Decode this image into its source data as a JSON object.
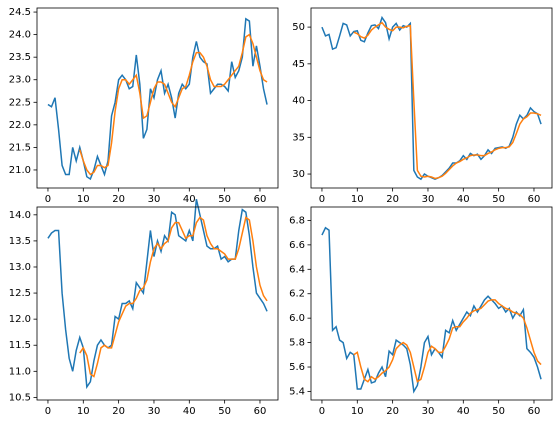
{
  "chart_data": [
    {
      "type": "line",
      "x": [
        0,
        1,
        2,
        3,
        4,
        5,
        6,
        7,
        8,
        9,
        10,
        11,
        12,
        13,
        14,
        15,
        16,
        17,
        18,
        19,
        20,
        21,
        22,
        23,
        24,
        25,
        26,
        27,
        28,
        29,
        30,
        31,
        32,
        33,
        34,
        35,
        36,
        37,
        38,
        39,
        40,
        41,
        42,
        43,
        44,
        45,
        46,
        47,
        48,
        49,
        50,
        51,
        52,
        53,
        54,
        55,
        56,
        57,
        58,
        59,
        60,
        61,
        62
      ],
      "series": [
        {
          "color": "#1f77b4",
          "values": [
            22.45,
            22.4,
            22.6,
            21.9,
            21.1,
            20.9,
            20.9,
            21.5,
            21.2,
            21.5,
            21.2,
            20.85,
            20.8,
            21.0,
            21.3,
            21.1,
            20.9,
            21.2,
            22.2,
            22.5,
            23.0,
            23.1,
            23.0,
            22.8,
            22.85,
            23.55,
            22.9,
            21.7,
            21.9,
            22.8,
            22.6,
            23.0,
            23.2,
            22.7,
            22.9,
            22.6,
            22.15,
            22.7,
            22.9,
            22.8,
            22.9,
            23.5,
            23.85,
            23.5,
            23.4,
            23.35,
            22.7,
            22.8,
            22.9,
            22.9,
            22.85,
            22.75,
            23.4,
            23.05,
            23.2,
            23.5,
            24.35,
            24.3,
            23.3,
            23.75,
            23.3,
            22.8,
            22.45
          ]
        },
        {
          "color": "#ff7f0e",
          "values": [
            null,
            null,
            null,
            null,
            null,
            null,
            null,
            null,
            null,
            21.45,
            21.2,
            21.0,
            20.9,
            20.95,
            21.1,
            21.1,
            21.05,
            21.1,
            21.6,
            22.3,
            22.8,
            23.0,
            23.0,
            22.9,
            23.0,
            23.1,
            22.7,
            22.15,
            22.2,
            22.5,
            22.8,
            22.95,
            22.95,
            22.9,
            22.7,
            22.5,
            22.4,
            22.6,
            22.8,
            22.85,
            23.1,
            23.4,
            23.6,
            23.6,
            23.5,
            23.3,
            23.0,
            22.85,
            22.85,
            22.85,
            22.9,
            23.0,
            23.1,
            23.2,
            23.3,
            23.6,
            23.95,
            24.0,
            23.8,
            23.5,
            23.2,
            23.0,
            22.95
          ]
        }
      ],
      "xlim": [
        -3.1,
        65.1
      ],
      "xticks": [
        0,
        10,
        20,
        30,
        40,
        50,
        60
      ],
      "ylim": [
        20.6,
        24.59
      ],
      "yticks": [
        {
          "value": 21,
          "label": "21.0"
        },
        21.5,
        {
          "value": 22,
          "label": "22.0"
        },
        22.5,
        {
          "value": 23,
          "label": "23.0"
        },
        23.5,
        {
          "value": 24,
          "label": "24.0"
        },
        24.5
      ]
    },
    {
      "type": "line",
      "x": [
        0,
        1,
        2,
        3,
        4,
        5,
        6,
        7,
        8,
        9,
        10,
        11,
        12,
        13,
        14,
        15,
        16,
        17,
        18,
        19,
        20,
        21,
        22,
        23,
        24,
        25,
        26,
        27,
        28,
        29,
        30,
        31,
        32,
        33,
        34,
        35,
        36,
        37,
        38,
        39,
        40,
        41,
        42,
        43,
        44,
        45,
        46,
        47,
        48,
        49,
        50,
        51,
        52,
        53,
        54,
        55,
        56,
        57,
        58,
        59,
        60,
        61,
        62
      ],
      "series": [
        {
          "color": "#1f77b4",
          "values": [
            50.0,
            48.8,
            49.0,
            47.0,
            47.2,
            48.8,
            50.5,
            50.3,
            48.8,
            49.4,
            49.5,
            48.2,
            48.0,
            49.2,
            50.2,
            50.3,
            49.8,
            51.3,
            50.6,
            48.4,
            50.0,
            50.5,
            49.6,
            50.2,
            50.0,
            50.5,
            30.5,
            29.6,
            29.3,
            30.0,
            29.7,
            29.5,
            29.3,
            29.5,
            29.8,
            30.3,
            30.8,
            31.5,
            31.5,
            31.8,
            32.5,
            32.0,
            32.8,
            32.5,
            32.7,
            32.0,
            32.5,
            33.3,
            32.8,
            33.5,
            33.6,
            33.7,
            33.5,
            33.8,
            35.0,
            36.8,
            38.0,
            37.5,
            38.0,
            39.0,
            38.5,
            38.2,
            36.8
          ]
        },
        {
          "color": "#ff7f0e",
          "values": [
            null,
            null,
            null,
            null,
            null,
            null,
            null,
            null,
            null,
            49.3,
            49.1,
            48.7,
            48.5,
            48.9,
            49.6,
            50.0,
            50.3,
            50.6,
            50.0,
            49.7,
            49.5,
            50.0,
            50.0,
            49.9,
            50.1,
            50.2,
            40.0,
            30.5,
            29.7,
            29.6,
            29.7,
            29.6,
            29.4,
            29.5,
            29.7,
            30.1,
            30.6,
            31.1,
            31.5,
            31.7,
            32.0,
            32.2,
            32.5,
            32.6,
            32.6,
            32.5,
            32.5,
            32.8,
            33.0,
            33.3,
            33.5,
            33.6,
            33.6,
            33.7,
            34.3,
            35.5,
            36.8,
            37.5,
            37.8,
            38.3,
            38.3,
            38.2,
            38.0
          ]
        }
      ],
      "xlim": [
        -3.1,
        65.1
      ],
      "xticks": [
        0,
        10,
        20,
        30,
        40,
        50,
        60
      ],
      "ylim": [
        28.1,
        52.6
      ],
      "yticks": [
        30,
        35,
        40,
        45,
        50
      ]
    },
    {
      "type": "line",
      "x": [
        0,
        1,
        2,
        3,
        4,
        5,
        6,
        7,
        8,
        9,
        10,
        11,
        12,
        13,
        14,
        15,
        16,
        17,
        18,
        19,
        20,
        21,
        22,
        23,
        24,
        25,
        26,
        27,
        28,
        29,
        30,
        31,
        32,
        33,
        34,
        35,
        36,
        37,
        38,
        39,
        40,
        41,
        42,
        43,
        44,
        45,
        46,
        47,
        48,
        49,
        50,
        51,
        52,
        53,
        54,
        55,
        56,
        57,
        58,
        59,
        60,
        61,
        62
      ],
      "series": [
        {
          "color": "#1f77b4",
          "values": [
            13.55,
            13.65,
            13.7,
            13.7,
            12.5,
            11.8,
            11.25,
            11.0,
            11.4,
            11.65,
            11.45,
            10.7,
            10.8,
            11.2,
            11.5,
            11.6,
            11.5,
            11.45,
            11.5,
            12.05,
            12.0,
            12.3,
            12.3,
            12.35,
            12.2,
            12.7,
            12.6,
            12.5,
            13.1,
            13.7,
            13.2,
            13.5,
            13.3,
            13.6,
            13.5,
            14.05,
            14.0,
            13.6,
            13.55,
            13.5,
            13.7,
            13.5,
            14.3,
            14.0,
            13.7,
            13.4,
            13.35,
            13.35,
            13.4,
            13.15,
            13.2,
            13.1,
            13.15,
            13.15,
            13.7,
            14.1,
            14.05,
            13.6,
            13.0,
            12.5,
            12.4,
            12.3,
            12.15
          ]
        },
        {
          "color": "#ff7f0e",
          "values": [
            null,
            null,
            null,
            null,
            null,
            null,
            null,
            null,
            null,
            11.35,
            11.45,
            11.3,
            10.95,
            10.9,
            11.15,
            11.45,
            11.5,
            11.45,
            11.45,
            11.7,
            11.95,
            12.1,
            12.25,
            12.3,
            12.3,
            12.4,
            12.55,
            12.6,
            12.75,
            13.1,
            13.35,
            13.45,
            13.35,
            13.45,
            13.5,
            13.75,
            13.85,
            13.85,
            13.7,
            13.55,
            13.6,
            13.6,
            13.85,
            13.95,
            13.9,
            13.6,
            13.45,
            13.35,
            13.35,
            13.3,
            13.25,
            13.15,
            13.15,
            13.15,
            13.35,
            13.65,
            13.95,
            13.9,
            13.5,
            13.0,
            12.65,
            12.45,
            12.35
          ]
        }
      ],
      "xlim": [
        -3.1,
        65.1
      ],
      "xticks": [
        0,
        10,
        20,
        30,
        40,
        50,
        60
      ],
      "ylim": [
        10.45,
        14.15
      ],
      "yticks": [
        10.5,
        {
          "value": 11,
          "label": "11.0"
        },
        11.5,
        {
          "value": 12,
          "label": "12.0"
        },
        12.5,
        {
          "value": 13,
          "label": "13.0"
        },
        13.5,
        {
          "value": 14,
          "label": "14.0"
        }
      ]
    },
    {
      "type": "line",
      "x": [
        0,
        1,
        2,
        3,
        4,
        5,
        6,
        7,
        8,
        9,
        10,
        11,
        12,
        13,
        14,
        15,
        16,
        17,
        18,
        19,
        20,
        21,
        22,
        23,
        24,
        25,
        26,
        27,
        28,
        29,
        30,
        31,
        32,
        33,
        34,
        35,
        36,
        37,
        38,
        39,
        40,
        41,
        42,
        43,
        44,
        45,
        46,
        47,
        48,
        49,
        50,
        51,
        52,
        53,
        54,
        55,
        56,
        57,
        58,
        59,
        60,
        61,
        62
      ],
      "series": [
        {
          "color": "#1f77b4",
          "values": [
            6.68,
            6.74,
            6.72,
            5.9,
            5.93,
            5.82,
            5.8,
            5.67,
            5.72,
            5.7,
            5.42,
            5.42,
            5.5,
            5.58,
            5.47,
            5.48,
            5.55,
            5.6,
            5.52,
            5.73,
            5.7,
            5.82,
            5.8,
            5.78,
            5.75,
            5.62,
            5.4,
            5.45,
            5.6,
            5.8,
            5.85,
            5.7,
            5.75,
            5.72,
            5.68,
            5.9,
            5.88,
            5.98,
            5.9,
            5.95,
            6.0,
            6.05,
            6.02,
            6.1,
            6.05,
            6.1,
            6.15,
            6.18,
            6.15,
            6.12,
            6.08,
            6.1,
            6.05,
            6.08,
            6.0,
            6.05,
            6.02,
            6.07,
            5.75,
            5.72,
            5.68,
            5.6,
            5.5
          ]
        },
        {
          "color": "#ff7f0e",
          "values": [
            null,
            null,
            null,
            null,
            null,
            null,
            null,
            null,
            null,
            5.7,
            5.72,
            5.6,
            5.5,
            5.48,
            5.52,
            5.5,
            5.52,
            5.55,
            5.57,
            5.6,
            5.66,
            5.75,
            5.78,
            5.8,
            5.78,
            5.72,
            5.6,
            5.48,
            5.5,
            5.6,
            5.72,
            5.77,
            5.75,
            5.72,
            5.72,
            5.77,
            5.83,
            5.92,
            5.93,
            5.93,
            5.97,
            6.0,
            6.04,
            6.06,
            6.07,
            6.08,
            6.11,
            6.14,
            6.15,
            6.15,
            6.12,
            6.1,
            6.08,
            6.07,
            6.05,
            6.04,
            6.03,
            6.0,
            5.92,
            5.82,
            5.72,
            5.65,
            5.62
          ]
        }
      ],
      "xlim": [
        -3.1,
        65.1
      ],
      "xticks": [
        0,
        10,
        20,
        30,
        40,
        50,
        60
      ],
      "ylim": [
        5.33,
        6.91
      ],
      "yticks": [
        5.4,
        5.6,
        5.8,
        {
          "value": 6,
          "label": "6.0"
        },
        6.2,
        6.4,
        6.6,
        6.8
      ]
    }
  ]
}
